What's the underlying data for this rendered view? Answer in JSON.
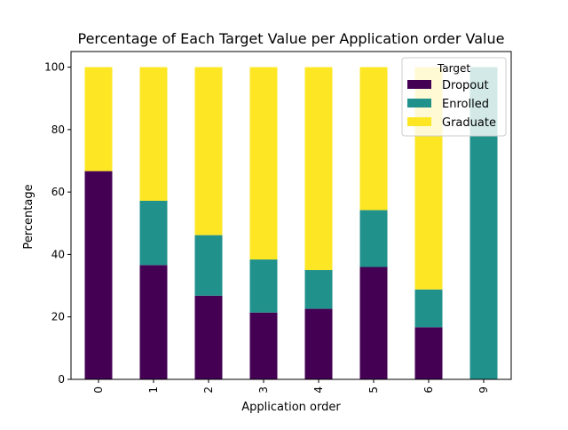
{
  "chart_data": {
    "type": "bar",
    "stacked": true,
    "title": "Percentage of Each Target Value per Application order Value",
    "xlabel": "Application order",
    "ylabel": "Percentage",
    "categories": [
      "0",
      "1",
      "2",
      "3",
      "4",
      "5",
      "6",
      "9"
    ],
    "ylim": [
      0,
      105
    ],
    "yticks": [
      0,
      20,
      40,
      60,
      80,
      100
    ],
    "legend": {
      "title": "Target",
      "position": "top-right"
    },
    "series": [
      {
        "name": "Dropout",
        "color": "#440154",
        "values": [
          66.7,
          36.6,
          26.8,
          21.4,
          22.6,
          36.0,
          16.7,
          0.0
        ]
      },
      {
        "name": "Enrolled",
        "color": "#21918c",
        "values": [
          0.0,
          20.6,
          19.4,
          17.0,
          12.4,
          18.2,
          12.1,
          100.0
        ]
      },
      {
        "name": "Graduate",
        "color": "#fde725",
        "values": [
          33.3,
          42.8,
          53.8,
          61.6,
          65.0,
          45.8,
          71.2,
          0.0
        ]
      }
    ]
  }
}
